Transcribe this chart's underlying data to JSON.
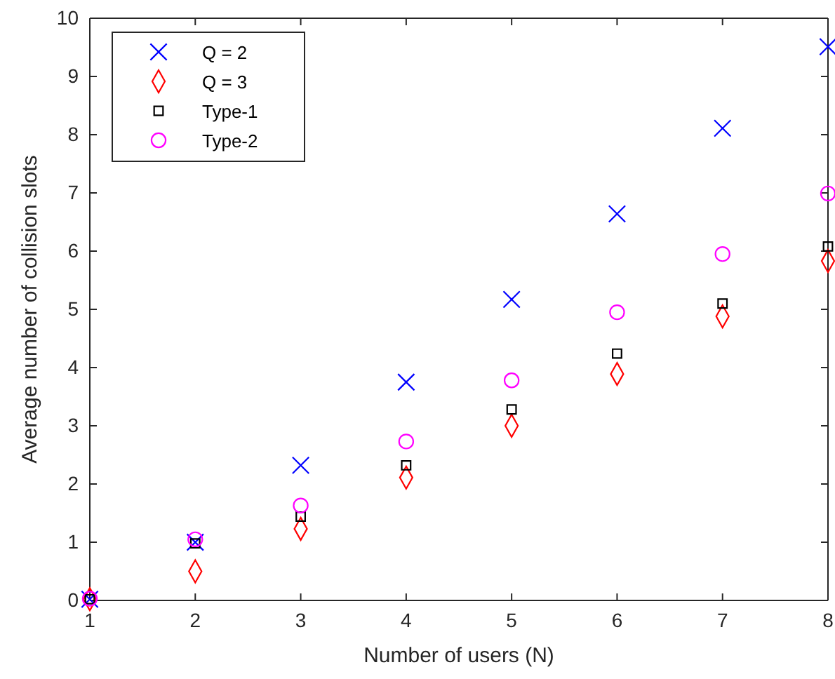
{
  "chart_data": {
    "type": "scatter",
    "xlabel": "Number of users (N)",
    "ylabel": "Average number of collision slots",
    "x": [
      1,
      2,
      3,
      4,
      5,
      6,
      7,
      8
    ],
    "xlim": [
      1,
      8
    ],
    "xticks": [
      1,
      2,
      3,
      4,
      5,
      6,
      7,
      8
    ],
    "ylim": [
      0,
      10
    ],
    "yticks": [
      0,
      1,
      2,
      3,
      4,
      5,
      6,
      7,
      8,
      9,
      10
    ],
    "grid": false,
    "legend": "top left",
    "series": [
      {
        "name": "Q = 2",
        "color": "#0000ff",
        "marker": "cross",
        "values": [
          0.02,
          1.0,
          2.32,
          3.75,
          5.17,
          6.64,
          8.11,
          9.51
        ]
      },
      {
        "name": "Q = 3",
        "color": "#ff0000",
        "marker": "diamond",
        "values": [
          0.02,
          0.5,
          1.23,
          2.11,
          3.0,
          3.89,
          4.88,
          5.83
        ]
      },
      {
        "name": "Type-1",
        "color": "#000000",
        "marker": "square",
        "values": [
          0.02,
          0.98,
          1.44,
          2.32,
          3.28,
          4.24,
          5.1,
          6.08
        ]
      },
      {
        "name": "Type-2",
        "color": "#ff00ff",
        "marker": "circle",
        "values": [
          0.03,
          1.05,
          1.63,
          2.73,
          3.78,
          4.95,
          5.95,
          6.99
        ]
      }
    ]
  }
}
